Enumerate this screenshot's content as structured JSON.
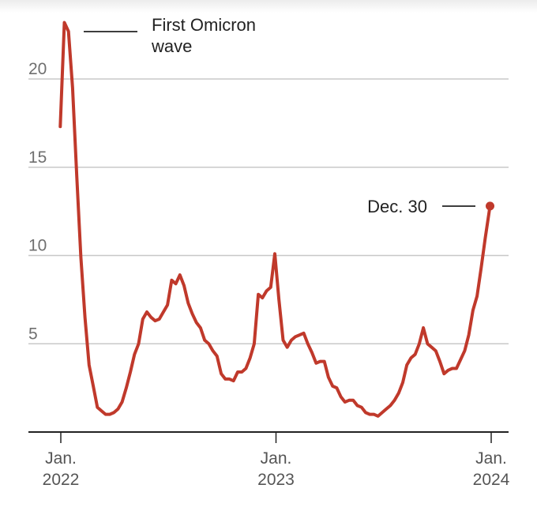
{
  "chart_data": {
    "type": "line",
    "title": "",
    "xlabel": "",
    "ylabel": "",
    "ylim": [
      0,
      24
    ],
    "y_ticks": [
      5,
      10,
      15,
      20
    ],
    "grid": true,
    "x_ticks": [
      {
        "month": "Jan.",
        "year": "2022",
        "date": "2022-01-01"
      },
      {
        "month": "Jan.",
        "year": "2023",
        "date": "2023-01-01"
      },
      {
        "month": "Jan.",
        "year": "2024",
        "date": "2024-01-01"
      }
    ],
    "series": [
      {
        "name": "",
        "color": "#c0392b",
        "points": [
          [
            "2021-12-31",
            17.3
          ],
          [
            "2022-01-07",
            23.2
          ],
          [
            "2022-01-14",
            22.7
          ],
          [
            "2022-01-21",
            19.5
          ],
          [
            "2022-01-28",
            14.5
          ],
          [
            "2022-02-04",
            9.9
          ],
          [
            "2022-02-11",
            6.5
          ],
          [
            "2022-02-18",
            3.8
          ],
          [
            "2022-02-25",
            2.6
          ],
          [
            "2022-03-04",
            1.4
          ],
          [
            "2022-03-11",
            1.2
          ],
          [
            "2022-03-18",
            1.0
          ],
          [
            "2022-03-25",
            1.0
          ],
          [
            "2022-04-01",
            1.1
          ],
          [
            "2022-04-08",
            1.3
          ],
          [
            "2022-04-15",
            1.7
          ],
          [
            "2022-04-22",
            2.5
          ],
          [
            "2022-04-29",
            3.4
          ],
          [
            "2022-05-06",
            4.4
          ],
          [
            "2022-05-13",
            5.0
          ],
          [
            "2022-05-20",
            6.4
          ],
          [
            "2022-05-27",
            6.8
          ],
          [
            "2022-06-03",
            6.5
          ],
          [
            "2022-06-10",
            6.3
          ],
          [
            "2022-06-17",
            6.4
          ],
          [
            "2022-06-24",
            6.8
          ],
          [
            "2022-07-01",
            7.2
          ],
          [
            "2022-07-08",
            8.6
          ],
          [
            "2022-07-15",
            8.4
          ],
          [
            "2022-07-22",
            8.9
          ],
          [
            "2022-07-29",
            8.3
          ],
          [
            "2022-08-05",
            7.3
          ],
          [
            "2022-08-12",
            6.7
          ],
          [
            "2022-08-19",
            6.2
          ],
          [
            "2022-08-26",
            5.9
          ],
          [
            "2022-09-02",
            5.2
          ],
          [
            "2022-09-09",
            5.0
          ],
          [
            "2022-09-16",
            4.6
          ],
          [
            "2022-09-23",
            4.3
          ],
          [
            "2022-09-30",
            3.3
          ],
          [
            "2022-10-07",
            3.0
          ],
          [
            "2022-10-14",
            3.0
          ],
          [
            "2022-10-21",
            2.9
          ],
          [
            "2022-10-28",
            3.4
          ],
          [
            "2022-11-04",
            3.4
          ],
          [
            "2022-11-11",
            3.6
          ],
          [
            "2022-11-18",
            4.2
          ],
          [
            "2022-11-25",
            5.0
          ],
          [
            "2022-12-02",
            7.8
          ],
          [
            "2022-12-09",
            7.6
          ],
          [
            "2022-12-16",
            8.0
          ],
          [
            "2022-12-23",
            8.2
          ],
          [
            "2022-12-30",
            10.1
          ],
          [
            "2023-01-06",
            7.5
          ],
          [
            "2023-01-13",
            5.2
          ],
          [
            "2023-01-20",
            4.8
          ],
          [
            "2023-01-27",
            5.2
          ],
          [
            "2023-02-03",
            5.4
          ],
          [
            "2023-02-10",
            5.5
          ],
          [
            "2023-02-17",
            5.6
          ],
          [
            "2023-02-24",
            5.0
          ],
          [
            "2023-03-03",
            4.5
          ],
          [
            "2023-03-10",
            3.9
          ],
          [
            "2023-03-17",
            4.0
          ],
          [
            "2023-03-24",
            4.0
          ],
          [
            "2023-03-31",
            3.1
          ],
          [
            "2023-04-07",
            2.6
          ],
          [
            "2023-04-14",
            2.5
          ],
          [
            "2023-04-21",
            2.0
          ],
          [
            "2023-04-28",
            1.7
          ],
          [
            "2023-05-05",
            1.8
          ],
          [
            "2023-05-12",
            1.8
          ],
          [
            "2023-05-19",
            1.5
          ],
          [
            "2023-05-26",
            1.4
          ],
          [
            "2023-06-02",
            1.1
          ],
          [
            "2023-06-09",
            1.0
          ],
          [
            "2023-06-16",
            1.0
          ],
          [
            "2023-06-23",
            0.9
          ],
          [
            "2023-06-30",
            1.1
          ],
          [
            "2023-07-07",
            1.3
          ],
          [
            "2023-07-14",
            1.5
          ],
          [
            "2023-07-21",
            1.8
          ],
          [
            "2023-07-28",
            2.2
          ],
          [
            "2023-08-04",
            2.8
          ],
          [
            "2023-08-11",
            3.8
          ],
          [
            "2023-08-18",
            4.2
          ],
          [
            "2023-08-25",
            4.4
          ],
          [
            "2023-09-01",
            5.0
          ],
          [
            "2023-09-08",
            5.9
          ],
          [
            "2023-09-15",
            5.0
          ],
          [
            "2023-09-22",
            4.8
          ],
          [
            "2023-09-29",
            4.6
          ],
          [
            "2023-10-06",
            4.0
          ],
          [
            "2023-10-13",
            3.3
          ],
          [
            "2023-10-20",
            3.5
          ],
          [
            "2023-10-27",
            3.6
          ],
          [
            "2023-11-03",
            3.6
          ],
          [
            "2023-11-10",
            4.1
          ],
          [
            "2023-11-17",
            4.6
          ],
          [
            "2023-11-24",
            5.5
          ],
          [
            "2023-12-01",
            6.9
          ],
          [
            "2023-12-08",
            7.7
          ],
          [
            "2023-12-15",
            9.3
          ],
          [
            "2023-12-22",
            11.0
          ],
          [
            "2023-12-30",
            12.8
          ]
        ]
      }
    ],
    "annotations": {
      "peak_label_line1": "First Omicron",
      "peak_label_line2": "wave",
      "end_label": "Dec. 30"
    }
  }
}
